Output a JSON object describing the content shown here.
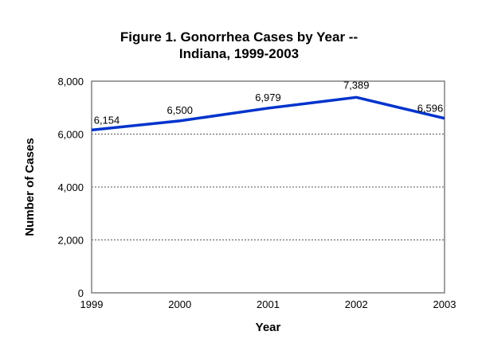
{
  "chart_data": {
    "type": "line",
    "title_line1": "Figure 1.  Gonorrhea Cases by Year --",
    "title_line2": "Indiana, 1999-2003",
    "xlabel": "Year",
    "ylabel": "Number of Cases",
    "x": [
      "1999",
      "2000",
      "2001",
      "2002",
      "2003"
    ],
    "series": [
      {
        "name": "Gonorrhea Cases",
        "values": [
          6154,
          6500,
          6979,
          7389,
          6596
        ],
        "labels": [
          "6,154",
          "6,500",
          "6,979",
          "7,389",
          "6,596"
        ],
        "color": "#0033cc"
      }
    ],
    "ylim": [
      0,
      8000
    ],
    "yticks": [
      0,
      2000,
      4000,
      6000,
      8000
    ],
    "ytick_labels": [
      "0",
      "2,000",
      "4,000",
      "6,000",
      "8,000"
    ],
    "grid": "horizontal dotted",
    "legend": "none"
  }
}
